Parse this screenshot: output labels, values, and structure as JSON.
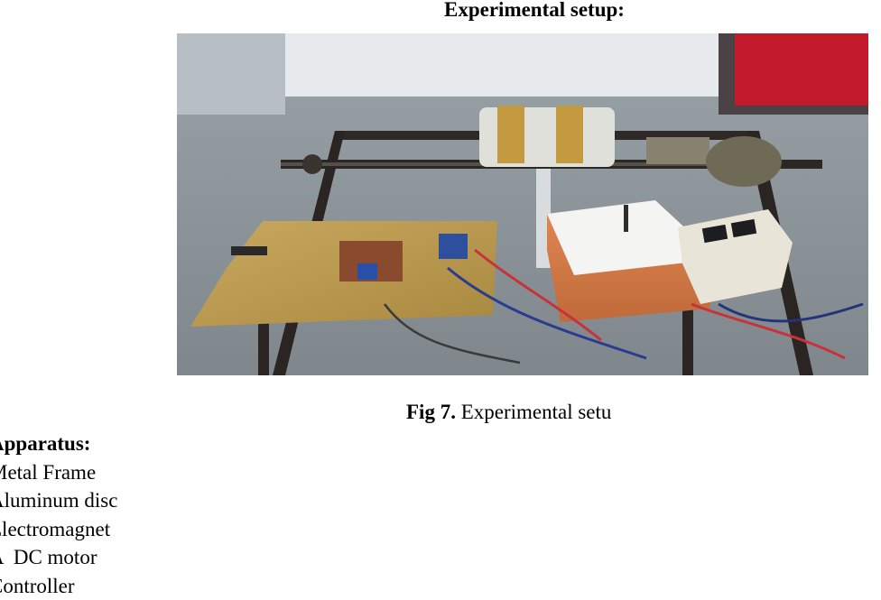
{
  "heading": "Experimental setup:",
  "figure": {
    "caption_label": "Fig 7.",
    "caption_text": "Experimental setu",
    "photo_subject": "experimental-setup-photo"
  },
  "apparatus": {
    "title": "Apparatus:",
    "items": [
      "Metal Frame",
      "Aluminum disc",
      "Electromagnet",
      "A  DC motor",
      "Controller"
    ]
  }
}
